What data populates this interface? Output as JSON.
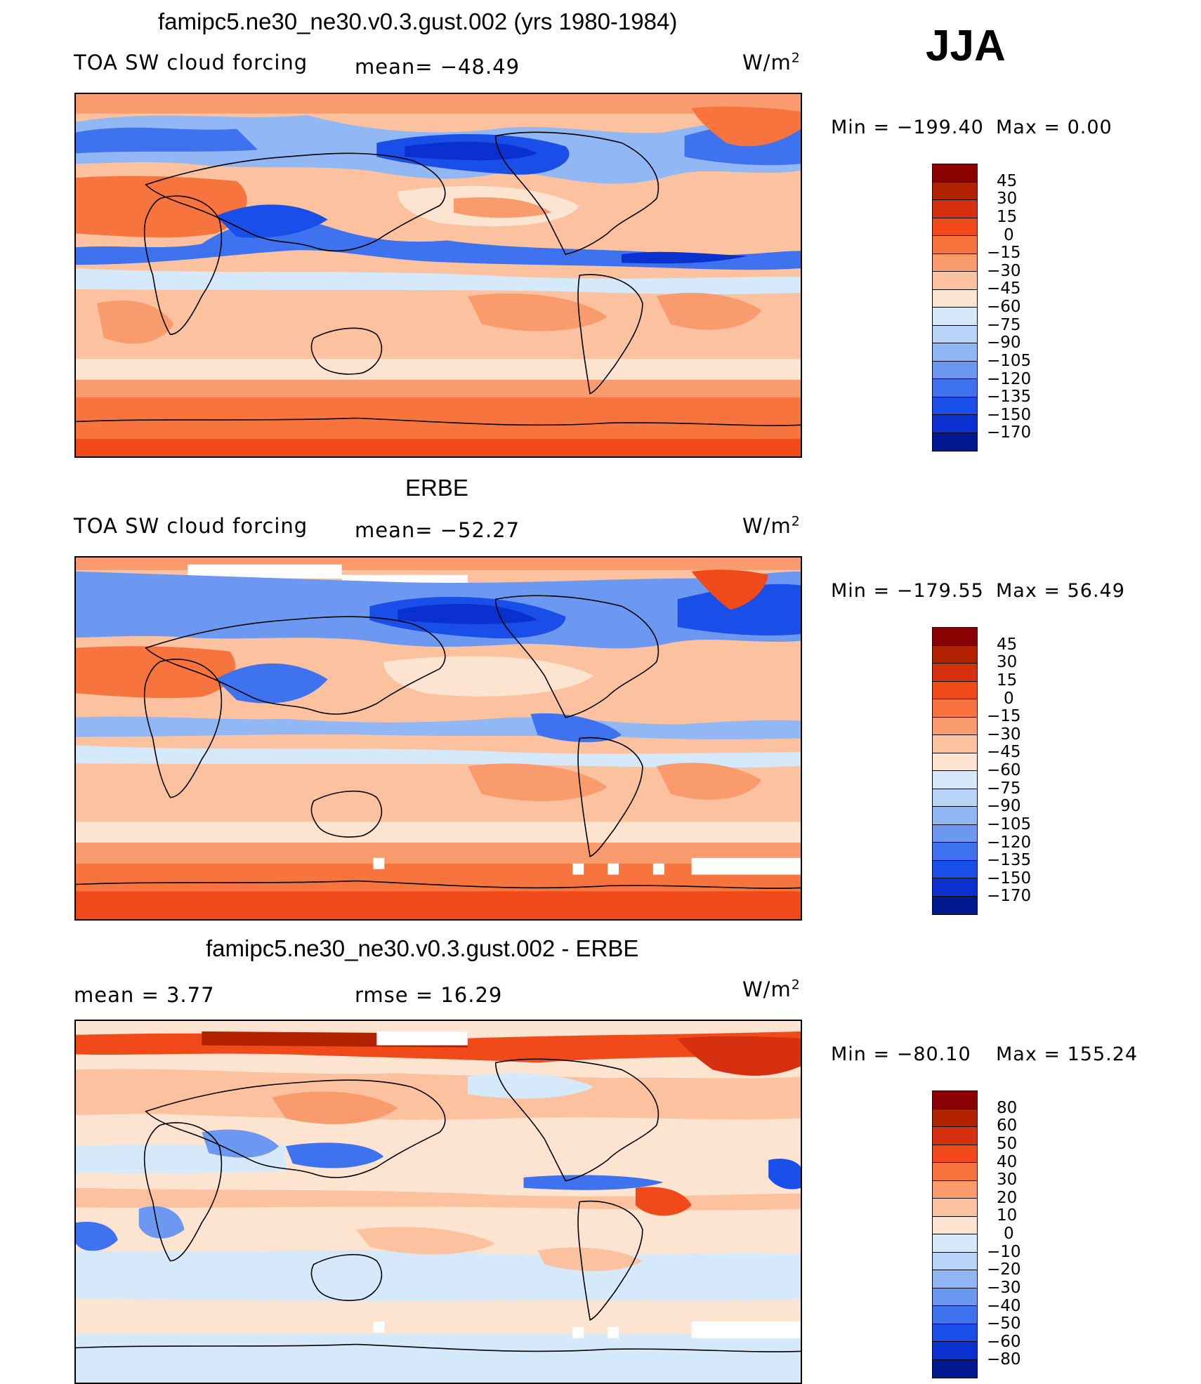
{
  "season": "JJA",
  "panels": [
    {
      "title": "famipc5.ne30_ne30.v0.3.gust.002 (yrs 1980-1984)",
      "left_label": "TOA SW cloud forcing",
      "mid_label": "mean=  −48.49",
      "units": "W/m",
      "units_exp": "2",
      "min_label": "Min  =  −199.40",
      "max_label": "Max  =     0.00",
      "colorbar": {
        "labels": [
          "45",
          "30",
          "15",
          "0",
          "−15",
          "−30",
          "−45",
          "−60",
          "−75",
          "−90",
          "−105",
          "−120",
          "−135",
          "−150",
          "−170"
        ],
        "colors": [
          "#8b0000",
          "#b22200",
          "#d63010",
          "#f04a1a",
          "#f7743e",
          "#fa9b6e",
          "#fcc2a0",
          "#fde4d0",
          "#d6e9fb",
          "#b8d4f8",
          "#92b7f5",
          "#6c98f2",
          "#3f72ee",
          "#1a4ee8",
          "#0a31cf",
          "#00178f"
        ]
      }
    },
    {
      "title": "ERBE",
      "left_label": "TOA SW cloud forcing",
      "mid_label": "mean=  −52.27",
      "units": "W/m",
      "units_exp": "2",
      "min_label": "Min  =  −179.55",
      "max_label": "Max  =   56.49",
      "colorbar": {
        "labels": [
          "45",
          "30",
          "15",
          "0",
          "−15",
          "−30",
          "−45",
          "−60",
          "−75",
          "−90",
          "−105",
          "−120",
          "−135",
          "−150",
          "−170"
        ],
        "colors": [
          "#8b0000",
          "#b22200",
          "#d63010",
          "#f04a1a",
          "#f7743e",
          "#fa9b6e",
          "#fcc2a0",
          "#fde4d0",
          "#d6e9fb",
          "#b8d4f8",
          "#92b7f5",
          "#6c98f2",
          "#3f72ee",
          "#1a4ee8",
          "#0a31cf",
          "#00178f"
        ]
      }
    },
    {
      "title": "famipc5.ne30_ne30.v0.3.gust.002 - ERBE",
      "left_label": "mean  =      3.77",
      "mid_label": "rmse  =    16.29",
      "units": "W/m",
      "units_exp": "2",
      "min_label": "Min  =  −80.10",
      "max_label": "Max  =  155.24",
      "colorbar": {
        "labels": [
          "80",
          "60",
          "50",
          "40",
          "30",
          "20",
          "10",
          "0",
          "−10",
          "−20",
          "−30",
          "−40",
          "−50",
          "−60",
          "−80"
        ],
        "colors": [
          "#8b0000",
          "#b22200",
          "#d63010",
          "#f04a1a",
          "#f7743e",
          "#fa9b6e",
          "#fcc2a0",
          "#fde4d0",
          "#d6e9fb",
          "#b8d4f8",
          "#92b7f5",
          "#6c98f2",
          "#3f72ee",
          "#1a4ee8",
          "#0a31cf",
          "#00178f"
        ]
      }
    }
  ]
}
